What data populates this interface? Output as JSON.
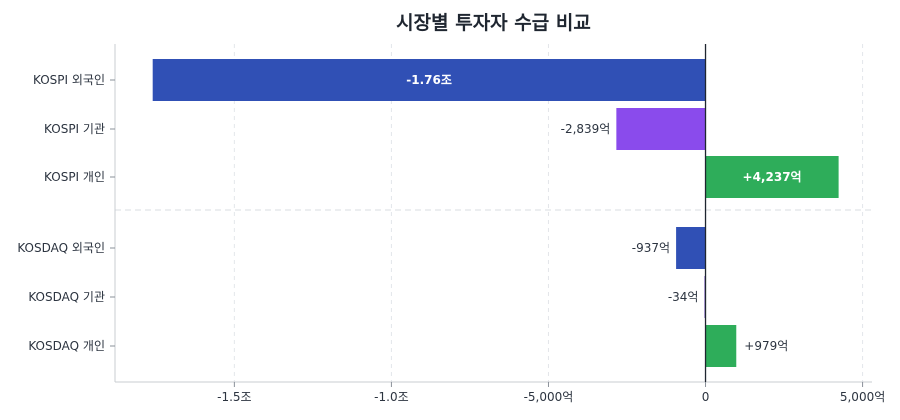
{
  "chart_data": {
    "type": "bar",
    "orientation": "horizontal",
    "title": "시장별 투자자 수급 비교",
    "unit": "억",
    "categories": [
      "KOSPI 외국인",
      "KOSPI 기관",
      "KOSPI 개인",
      "KOSDAQ 외국인",
      "KOSDAQ 기관",
      "KOSDAQ 개인"
    ],
    "values": [
      -17600,
      -2839,
      4237,
      -937,
      -34,
      979
    ],
    "data_labels": [
      "-1.76조",
      "-2,839억",
      "+4,237억",
      "-937억",
      "-34억",
      "+979억"
    ],
    "bar_colors": [
      "#3050b5",
      "#8a4bec",
      "#2ead5a",
      "#3050b5",
      "#6b46c1",
      "#2ead5a"
    ],
    "xlim": [
      -18800,
      5300
    ],
    "x_ticks": [
      {
        "value": -15000,
        "label": "-1.5조"
      },
      {
        "value": -10000,
        "label": "-1.0조"
      },
      {
        "value": -5000,
        "label": "-5,000억"
      },
      {
        "value": 0,
        "label": "0"
      },
      {
        "value": 5000,
        "label": "5,000억"
      }
    ],
    "groups": [
      {
        "name": "KOSPI",
        "indices": [
          0,
          1,
          2
        ]
      },
      {
        "name": "KOSDAQ",
        "indices": [
          3,
          4,
          5
        ]
      }
    ],
    "grid": true,
    "legend": "none"
  }
}
